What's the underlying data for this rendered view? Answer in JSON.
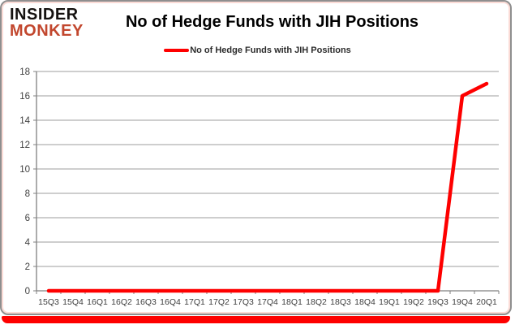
{
  "brand": {
    "line1": "INSIDER",
    "line2": "MONKEY"
  },
  "header": {
    "title": "No of Hedge Funds with JIH Positions"
  },
  "legend": {
    "label": "No of Hedge Funds with JIH Positions"
  },
  "colors": {
    "line": "#fe0000",
    "brand_accent": "#c2472e",
    "bottom_bar": "#fe0000",
    "grid": "#9d9d9d",
    "axis": "#808080",
    "tick_text": "#3f3f3f",
    "frame": "#8f8f8f"
  },
  "chart_data": {
    "type": "line",
    "title": "No of Hedge Funds with JIH Positions",
    "categories": [
      "15Q3",
      "15Q4",
      "16Q1",
      "16Q2",
      "16Q3",
      "16Q4",
      "17Q1",
      "17Q2",
      "17Q3",
      "17Q4",
      "18Q1",
      "18Q2",
      "18Q3",
      "18Q4",
      "19Q1",
      "19Q2",
      "19Q3",
      "19Q4",
      "20Q1"
    ],
    "series": [
      {
        "name": "No of Hedge Funds with JIH Positions",
        "values": [
          0,
          0,
          0,
          0,
          0,
          0,
          0,
          0,
          0,
          0,
          0,
          0,
          0,
          0,
          0,
          0,
          0,
          16,
          17
        ]
      }
    ],
    "xlabel": "",
    "ylabel": "",
    "ylim": [
      0,
      18
    ],
    "ytick_step": 2,
    "grid": true,
    "legend_position": "top"
  }
}
